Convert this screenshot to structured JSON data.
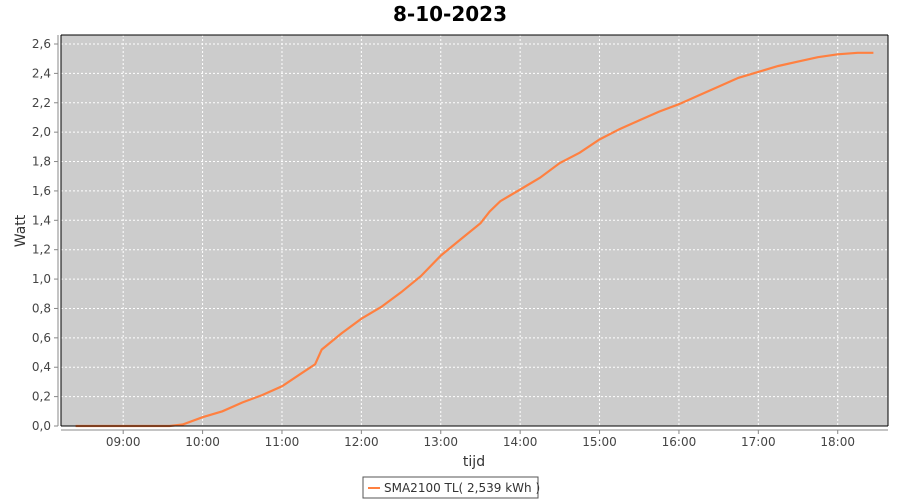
{
  "chart_data": {
    "type": "line",
    "title": "8-10-2023",
    "xlabel": "tijd",
    "ylabel": "Watt",
    "xlim": [
      "08:13",
      "18:38"
    ],
    "ylim": [
      0,
      2.6
    ],
    "x_ticks": [
      "09:00",
      "10:00",
      "11:00",
      "12:00",
      "13:00",
      "14:00",
      "15:00",
      "16:00",
      "17:00",
      "18:00"
    ],
    "y_ticks": [
      "0,0",
      "0,2",
      "0,4",
      "0,6",
      "0,8",
      "1,0",
      "1,2",
      "1,4",
      "1,6",
      "1,8",
      "2,0",
      "2,2",
      "2,4",
      "2,6"
    ],
    "grid": true,
    "legend_position": "bottom",
    "background": "#cccccc",
    "series": [
      {
        "name": "SMA2100 TL( 2,539 kWh )",
        "color": "#ff8040",
        "x": [
          "08:24",
          "09:35",
          "09:45",
          "10:00",
          "10:15",
          "10:30",
          "10:45",
          "11:00",
          "11:15",
          "11:25",
          "11:30",
          "11:45",
          "12:00",
          "12:15",
          "12:30",
          "12:45",
          "13:00",
          "13:15",
          "13:30",
          "13:37",
          "13:45",
          "14:00",
          "14:15",
          "14:30",
          "14:45",
          "15:00",
          "15:15",
          "15:30",
          "15:45",
          "16:00",
          "16:15",
          "16:30",
          "16:45",
          "17:00",
          "17:15",
          "17:30",
          "17:45",
          "18:00",
          "18:15",
          "18:27"
        ],
        "y": [
          0,
          0,
          0.01,
          0.06,
          0.1,
          0.16,
          0.21,
          0.27,
          0.36,
          0.42,
          0.52,
          0.63,
          0.73,
          0.81,
          0.91,
          1.02,
          1.16,
          1.27,
          1.38,
          1.46,
          1.53,
          1.61,
          1.69,
          1.79,
          1.86,
          1.95,
          2.02,
          2.08,
          2.14,
          2.19,
          2.25,
          2.31,
          2.37,
          2.41,
          2.45,
          2.48,
          2.51,
          2.53,
          2.54,
          2.54
        ]
      }
    ]
  }
}
